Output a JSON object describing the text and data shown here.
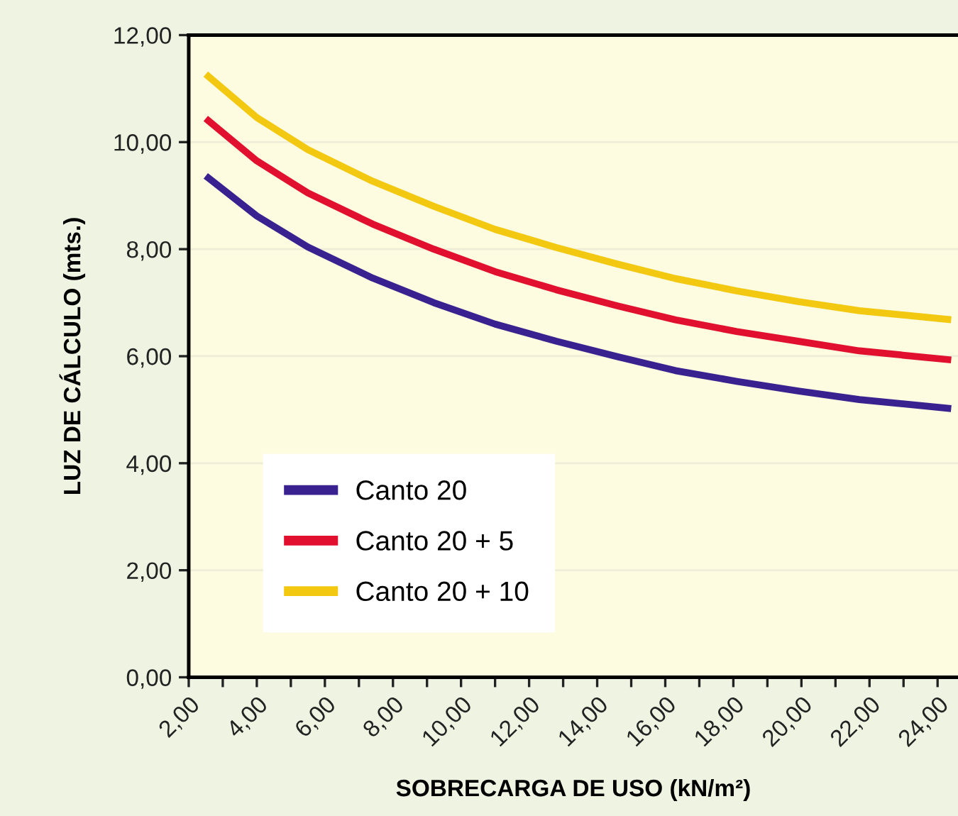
{
  "chart_data": {
    "type": "line",
    "xlabel": "SOBRECARGA DE USO (kN/m²)",
    "ylabel": "LUZ DE CÁLCULO (mts.)",
    "x": [
      2.5,
      4,
      5.5,
      7.4,
      9.2,
      11,
      12.8,
      14.6,
      16.3,
      18.1,
      19.9,
      21.7,
      24.4
    ],
    "series": [
      {
        "name": "Canto 20",
        "color": "#3a2190",
        "values": [
          9.37,
          8.62,
          8.04,
          7.46,
          7.0,
          6.6,
          6.28,
          5.99,
          5.73,
          5.53,
          5.35,
          5.19,
          5.02
        ]
      },
      {
        "name": "Canto 20 + 5",
        "color": "#e0102e",
        "values": [
          10.44,
          9.65,
          9.05,
          8.47,
          8.0,
          7.58,
          7.24,
          6.94,
          6.68,
          6.46,
          6.28,
          6.1,
          5.93
        ]
      },
      {
        "name": "Canto 20 + 10",
        "color": "#f2c811",
        "values": [
          11.27,
          10.46,
          9.86,
          9.27,
          8.8,
          8.37,
          8.03,
          7.72,
          7.45,
          7.22,
          7.02,
          6.85,
          6.68
        ]
      }
    ],
    "xlim": [
      2,
      24.6
    ],
    "xticks": [
      {
        "value": 2,
        "label": "2,00"
      },
      {
        "value": 3,
        "label": null
      },
      {
        "value": 4,
        "label": "4,00"
      },
      {
        "value": 5,
        "label": null
      },
      {
        "value": 6,
        "label": "6,00"
      },
      {
        "value": 7,
        "label": null
      },
      {
        "value": 8,
        "label": "8,00"
      },
      {
        "value": 9,
        "label": null
      },
      {
        "value": 10,
        "label": "10,00"
      },
      {
        "value": 11,
        "label": null
      },
      {
        "value": 12,
        "label": "12,00"
      },
      {
        "value": 13,
        "label": null
      },
      {
        "value": 14,
        "label": "14,00"
      },
      {
        "value": 15,
        "label": null
      },
      {
        "value": 16,
        "label": "16,00"
      },
      {
        "value": 17,
        "label": null
      },
      {
        "value": 18,
        "label": "18,00"
      },
      {
        "value": 19,
        "label": null
      },
      {
        "value": 20,
        "label": "20,00"
      },
      {
        "value": 21,
        "label": null
      },
      {
        "value": 22,
        "label": "22,00"
      },
      {
        "value": 23,
        "label": null
      },
      {
        "value": 24,
        "label": "24,00"
      }
    ],
    "ylim": [
      0,
      12
    ],
    "yticks": [
      {
        "value": 0,
        "label": "0,00"
      },
      {
        "value": 2,
        "label": "2,00"
      },
      {
        "value": 4,
        "label": "4,00"
      },
      {
        "value": 6,
        "label": "6,00"
      },
      {
        "value": 8,
        "label": "8,00"
      },
      {
        "value": 10,
        "label": "10,00"
      },
      {
        "value": 12,
        "label": "12,00"
      }
    ],
    "grid": "y",
    "legend": "bottom left",
    "marker": "none",
    "line_style": "solid"
  }
}
